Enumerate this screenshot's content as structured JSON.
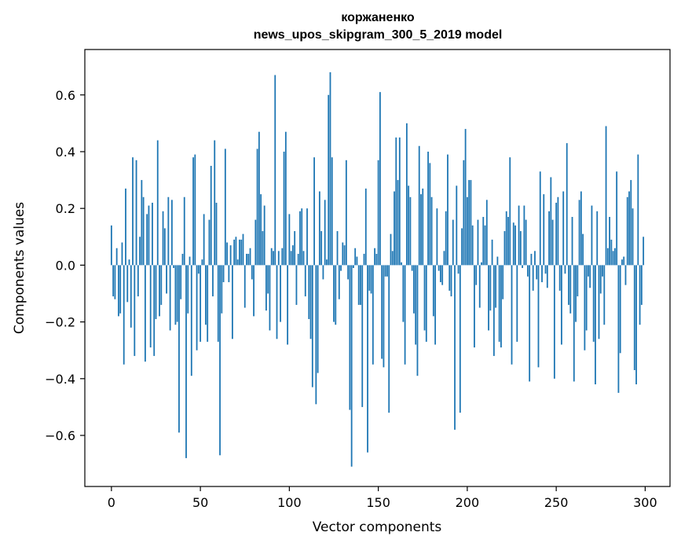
{
  "chart_data": {
    "type": "bar",
    "title_line1": "коржаненко",
    "title_line2": "news_upos_skipgram_300_5_2019 model",
    "xlabel": "Vector components",
    "ylabel": "Components values",
    "xlim": [
      -14.95,
      313.95
    ],
    "ylim": [
      -0.78,
      0.76
    ],
    "xticks": [
      0,
      50,
      100,
      150,
      200,
      250,
      300
    ],
    "xtick_labels": [
      "0",
      "50",
      "100",
      "150",
      "200",
      "250",
      "300"
    ],
    "yticks": [
      -0.6,
      -0.4,
      -0.2,
      0.0,
      0.2,
      0.4,
      0.6
    ],
    "ytick_labels": [
      "−0.6",
      "−0.4",
      "−0.2",
      "0.0",
      "0.2",
      "0.4",
      "0.6"
    ],
    "bar_color": "#1f77b4",
    "values": [
      0.14,
      -0.11,
      -0.12,
      0.06,
      -0.18,
      -0.17,
      0.08,
      -0.35,
      0.27,
      -0.13,
      0.02,
      -0.22,
      0.38,
      -0.32,
      0.37,
      -0.11,
      0.1,
      0.3,
      0.24,
      -0.34,
      0.18,
      0.21,
      -0.29,
      0.22,
      -0.32,
      -0.19,
      0.44,
      -0.18,
      -0.14,
      0.19,
      0.13,
      -0.1,
      0.24,
      -0.23,
      0.23,
      -0.01,
      -0.21,
      -0.2,
      -0.59,
      -0.12,
      0.04,
      0.24,
      -0.68,
      -0.17,
      0.03,
      -0.39,
      0.38,
      0.39,
      -0.3,
      -0.03,
      -0.27,
      0.02,
      0.18,
      -0.21,
      -0.27,
      0.16,
      0.35,
      -0.11,
      0.44,
      0.22,
      -0.27,
      -0.67,
      -0.17,
      -0.06,
      0.41,
      0.08,
      -0.06,
      0.07,
      -0.26,
      0.09,
      0.1,
      0.02,
      0.09,
      0.09,
      0.11,
      -0.15,
      0.04,
      0.04,
      0.06,
      -0.05,
      -0.18,
      0.16,
      0.41,
      0.47,
      0.25,
      0.12,
      0.21,
      -0.16,
      -0.1,
      -0.23,
      0.06,
      0.05,
      0.67,
      -0.26,
      0.05,
      -0.2,
      0.06,
      0.4,
      0.47,
      -0.28,
      0.18,
      0.05,
      0.07,
      0.12,
      -0.14,
      0.04,
      0.19,
      0.2,
      0.05,
      -0.11,
      0.2,
      -0.19,
      -0.26,
      -0.43,
      0.38,
      -0.49,
      -0.38,
      0.26,
      0.12,
      -0.05,
      0.23,
      0.02,
      0.6,
      0.68,
      0.38,
      -0.2,
      -0.21,
      0.12,
      -0.12,
      -0.02,
      0.08,
      0.07,
      0.37,
      -0.05,
      -0.51,
      -0.71,
      -0.01,
      0.06,
      0.03,
      -0.14,
      -0.14,
      -0.5,
      0.04,
      0.27,
      -0.66,
      -0.09,
      -0.1,
      -0.35,
      0.06,
      0.04,
      0.37,
      0.61,
      -0.33,
      -0.36,
      -0.04,
      -0.04,
      -0.52,
      0.11,
      0.05,
      0.26,
      0.45,
      0.3,
      0.45,
      0.01,
      -0.2,
      -0.35,
      0.5,
      0.28,
      0.24,
      -0.02,
      -0.17,
      -0.28,
      -0.39,
      0.42,
      0.25,
      0.27,
      -0.23,
      -0.27,
      0.4,
      0.36,
      0.24,
      -0.18,
      -0.28,
      0.2,
      -0.02,
      -0.06,
      -0.07,
      0.05,
      0.19,
      0.39,
      -0.09,
      -0.11,
      0.16,
      -0.58,
      0.28,
      -0.03,
      -0.52,
      0.13,
      0.37,
      0.48,
      0.24,
      0.3,
      0.3,
      0.14,
      -0.29,
      -0.07,
      0.16,
      -0.15,
      0.01,
      0.17,
      0.14,
      0.23,
      -0.23,
      -0.16,
      0.09,
      -0.32,
      -0.15,
      0.03,
      -0.27,
      -0.29,
      -0.12,
      0.12,
      0.19,
      0.17,
      0.38,
      -0.35,
      0.15,
      0.14,
      -0.27,
      0.21,
      0.12,
      -0.01,
      0.21,
      0.16,
      -0.04,
      -0.41,
      0.04,
      -0.09,
      0.05,
      -0.05,
      -0.36,
      0.33,
      -0.06,
      0.25,
      -0.03,
      -0.08,
      0.19,
      0.31,
      0.16,
      -0.4,
      0.22,
      0.24,
      -0.09,
      -0.28,
      0.26,
      -0.03,
      0.43,
      -0.14,
      -0.17,
      0.17,
      -0.41,
      -0.2,
      -0.11,
      0.23,
      0.26,
      0.11,
      -0.3,
      -0.23,
      -0.04,
      -0.08,
      0.21,
      -0.27,
      -0.42,
      0.19,
      -0.26,
      -0.1,
      -0.04,
      -0.21,
      0.49,
      0.06,
      0.17,
      0.09,
      0.05,
      0.06,
      0.33,
      -0.45,
      -0.31,
      0.02,
      0.03,
      -0.07,
      0.24,
      0.26,
      0.3,
      0.2,
      -0.37,
      -0.42,
      0.39,
      -0.21,
      -0.14,
      0.1
    ]
  }
}
